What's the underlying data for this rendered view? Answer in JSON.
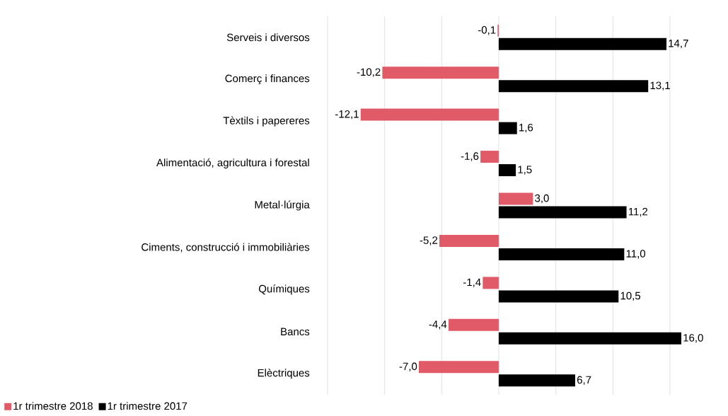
{
  "chart_data": {
    "type": "bar",
    "orientation": "horizontal",
    "categories": [
      "Serveis i diversos",
      "Comerç i finances",
      "Tèxtils i papereres",
      "Alimentació, agricultura i forestal",
      "Metal·lúrgia",
      "Ciments, construcció i immobiliàries",
      "Químiques",
      "Bancs",
      "Elèctriques"
    ],
    "series": [
      {
        "name": "1r trimestre 2018",
        "color": "#e05a67",
        "values": [
          -0.1,
          -10.2,
          -12.1,
          -1.6,
          3.0,
          -5.2,
          -1.4,
          -4.4,
          -7.0
        ],
        "value_labels": [
          "-0,1",
          "-10,2",
          "-12,1",
          "-1,6",
          "3,0",
          "-5,2",
          "-1,4",
          "-4,4",
          "-7,0"
        ]
      },
      {
        "name": "1r trimestre 2017",
        "color": "#000000",
        "values": [
          14.7,
          13.1,
          1.6,
          1.5,
          11.2,
          11.0,
          10.5,
          16.0,
          6.7
        ],
        "value_labels": [
          "14,7",
          "13,1",
          "1,6",
          "1,5",
          "11,2",
          "11,0",
          "10,5",
          "16,0",
          "6,7"
        ]
      }
    ],
    "xlim": [
      -15,
      16
    ],
    "xticks": [
      {
        "value": -15,
        "label": null
      },
      {
        "value": -10,
        "label": null
      },
      {
        "value": -5,
        "label": null
      },
      {
        "value": 0,
        "label": null
      },
      {
        "value": 5,
        "label": null
      },
      {
        "value": 10,
        "label": null
      },
      {
        "value": 15,
        "label": null
      }
    ],
    "grid": "x",
    "legend": "bottom left"
  }
}
